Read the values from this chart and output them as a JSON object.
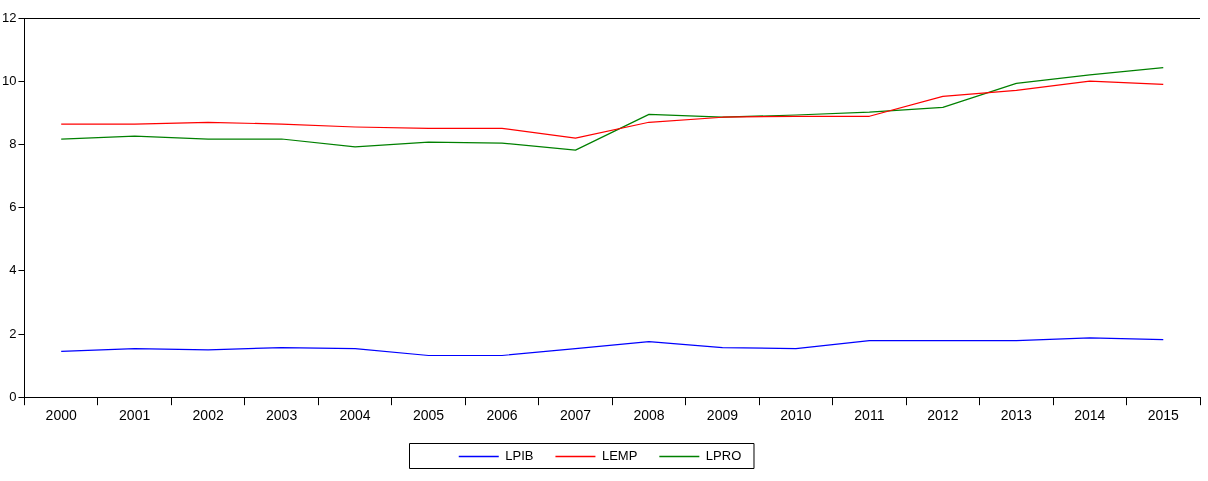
{
  "chart_data": {
    "type": "line",
    "categories": [
      "2000",
      "2001",
      "2002",
      "2003",
      "2004",
      "2005",
      "2006",
      "2007",
      "2008",
      "2009",
      "2010",
      "2011",
      "2012",
      "2013",
      "2014",
      "2015"
    ],
    "series": [
      {
        "name": "LPIB",
        "color": "#0000ff",
        "values": [
          1.45,
          1.54,
          1.5,
          1.57,
          1.54,
          1.32,
          1.32,
          1.54,
          1.76,
          1.57,
          1.54,
          1.79,
          1.79,
          1.79,
          1.88,
          1.82
        ]
      },
      {
        "name": "LEMP",
        "color": "#ff0000",
        "values": [
          8.64,
          8.64,
          8.7,
          8.64,
          8.55,
          8.51,
          8.51,
          8.2,
          8.7,
          8.86,
          8.89,
          8.89,
          9.52,
          9.71,
          10.0,
          9.9
        ]
      },
      {
        "name": "LPRO",
        "color": "#008000",
        "values": [
          8.17,
          8.26,
          8.17,
          8.17,
          7.92,
          8.07,
          8.04,
          7.82,
          8.95,
          8.86,
          8.93,
          9.02,
          9.17,
          9.93,
          10.2,
          10.43
        ]
      }
    ],
    "ylim": [
      0,
      12
    ],
    "yticks": [
      0,
      2,
      4,
      6,
      8,
      10,
      12
    ],
    "grid": false,
    "legend": "bottom",
    "marker": "none",
    "line_style": "solid"
  }
}
